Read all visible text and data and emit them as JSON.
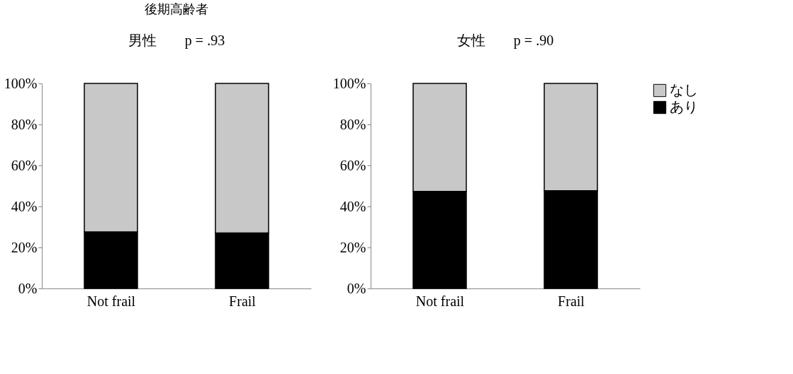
{
  "chart_data": [
    {
      "type": "bar",
      "title": "後期高齢者",
      "subtitle": "男性　　p = .93",
      "categories": [
        "Not frail",
        "Frail"
      ],
      "stacked": true,
      "ylim": [
        0,
        100
      ],
      "yticks": [
        {
          "value": 0,
          "label": "0%"
        },
        {
          "value": 20,
          "label": "20%"
        },
        {
          "value": 40,
          "label": "40%"
        },
        {
          "value": 60,
          "label": "60%"
        },
        {
          "value": 80,
          "label": "80%"
        },
        {
          "value": 100,
          "label": "100%"
        }
      ],
      "grid": false,
      "legend": false,
      "series": [
        {
          "color": "#000000",
          "values": [
            27.6,
            27.1
          ]
        },
        {
          "color": "#c8c8c8",
          "values": [
            72.4,
            72.9
          ]
        }
      ]
    },
    {
      "type": "bar",
      "subtitle": "女性　　p = .90",
      "categories": [
        "Not frail",
        "Frail"
      ],
      "stacked": true,
      "ylim": [
        0,
        100
      ],
      "yticks": [
        {
          "value": 0,
          "label": "0%"
        },
        {
          "value": 20,
          "label": "20%"
        },
        {
          "value": 40,
          "label": "40%"
        },
        {
          "value": 60,
          "label": "60%"
        },
        {
          "value": 80,
          "label": "80%"
        },
        {
          "value": 100,
          "label": "100%"
        }
      ],
      "grid": false,
      "legend": "right",
      "series": [
        {
          "name": "あり",
          "color": "#000000",
          "values": [
            47.3,
            47.7
          ]
        },
        {
          "name": "なし",
          "color": "#c8c8c8",
          "values": [
            52.7,
            52.3
          ]
        }
      ]
    }
  ]
}
